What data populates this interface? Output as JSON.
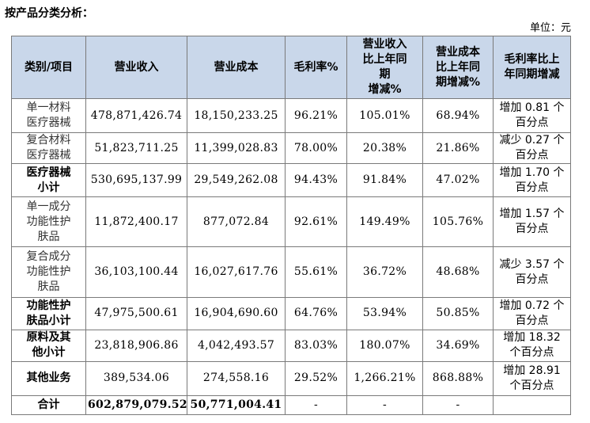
{
  "title": "按产品分类分析：",
  "unit_label": "单位：元",
  "table": {
    "headers": [
      "类别/项目",
      "营业收入",
      "营业成本",
      "毛利率%",
      "营业收入\n比上年同\n期\n增减%",
      "营业成本\n比上年同\n期增减%",
      "毛利率比上\n年同期增减"
    ],
    "rows": [
      {
        "category": "单一材料\n医疗器械",
        "revenue": "478,871,426.74",
        "cost": "18,150,233.25",
        "margin": "96.21%",
        "rev_change": "105.01%",
        "cost_change": "68.94%",
        "margin_change": "增加 0.81 个\n百分点"
      },
      {
        "category": "复合材料\n医疗器械",
        "revenue": "51,823,711.25",
        "cost": "11,399,028.83",
        "margin": "78.00%",
        "rev_change": "20.38%",
        "cost_change": "21.86%",
        "margin_change": "减少 0.27 个\n百分点"
      },
      {
        "category": "医疗器械\n小计",
        "revenue": "530,695,137.99",
        "cost": "29,549,262.08",
        "margin": "94.43%",
        "rev_change": "91.84%",
        "cost_change": "47.02%",
        "margin_change": "增加 1.70 个\n百分点"
      },
      {
        "category": "单一成分\n功能性护\n肤品",
        "revenue": "11,872,400.17",
        "cost": "877,072.84",
        "margin": "92.61%",
        "rev_change": "149.49%",
        "cost_change": "105.76%",
        "margin_change": "增加 1.57 个\n百分点"
      },
      {
        "category": "复合成分\n功能性护\n肤品",
        "revenue": "36,103,100.44",
        "cost": "16,027,617.76",
        "margin": "55.61%",
        "rev_change": "36.72%",
        "cost_change": "48.68%",
        "margin_change": "减少 3.57 个\n百分点"
      },
      {
        "category": "功能性护\n肤品小计",
        "revenue": "47,975,500.61",
        "cost": "16,904,690.60",
        "margin": "64.76%",
        "rev_change": "53.94%",
        "cost_change": "50.85%",
        "margin_change": "增加 0.72 个\n百分点"
      },
      {
        "category": "原料及其\n他小计",
        "revenue": "23,818,906.86",
        "cost": "4,042,493.57",
        "margin": "83.03%",
        "rev_change": "180.07%",
        "cost_change": "34.69%",
        "margin_change": "增加 18.32\n个百分点"
      },
      {
        "category": "其他业务",
        "revenue": "389,534.06",
        "cost": "274,558.16",
        "margin": "29.52%",
        "rev_change": "1,266.21%",
        "cost_change": "868.88%",
        "margin_change": "增加 28.91\n个百分点"
      },
      {
        "category": "合计",
        "revenue": "602,879,079.52",
        "cost": "50,771,004.41",
        "margin": "-",
        "rev_change": "-",
        "cost_change": "-",
        "margin_change": ""
      }
    ]
  }
}
